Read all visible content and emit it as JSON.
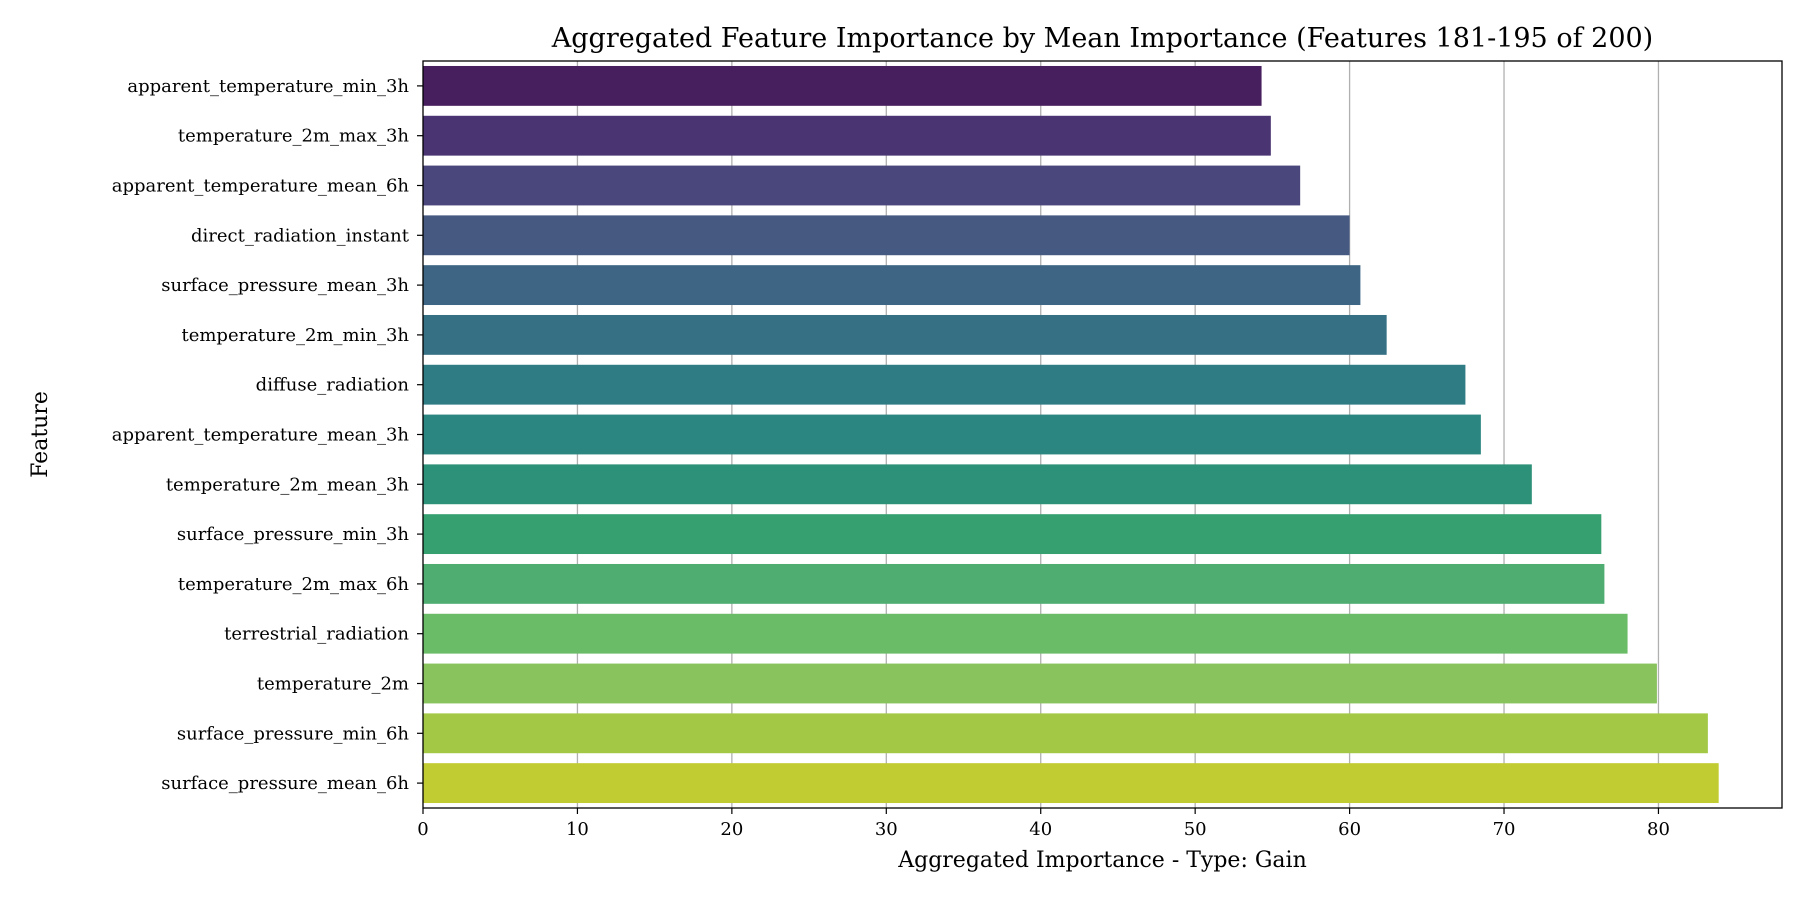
{
  "chart_data": {
    "type": "bar",
    "orientation": "horizontal",
    "title": "Aggregated Feature Importance by Mean Importance (Features 181-195 of 200)",
    "xlabel": "Aggregated Importance - Type: Gain",
    "ylabel": "Feature",
    "xlim": [
      0,
      88
    ],
    "xticks": [
      0,
      10,
      20,
      30,
      40,
      50,
      60,
      70,
      80
    ],
    "grid": "vertical",
    "legend": "none",
    "categories": [
      "apparent_temperature_min_3h",
      "temperature_2m_max_3h",
      "apparent_temperature_mean_6h",
      "direct_radiation_instant",
      "surface_pressure_mean_3h",
      "temperature_2m_min_3h",
      "diffuse_radiation",
      "apparent_temperature_mean_3h",
      "temperature_2m_mean_3h",
      "surface_pressure_min_3h",
      "temperature_2m_max_6h",
      "terrestrial_radiation",
      "temperature_2m",
      "surface_pressure_min_6h",
      "surface_pressure_mean_6h"
    ],
    "values": [
      54.3,
      54.9,
      56.8,
      60.0,
      60.7,
      62.4,
      67.5,
      68.5,
      71.8,
      76.3,
      76.5,
      78.0,
      79.9,
      83.2,
      83.9
    ],
    "colors": [
      "#471f5e",
      "#4a3471",
      "#4a477d",
      "#455981",
      "#3e6684",
      "#367085",
      "#2f7c85",
      "#2b8581",
      "#2d9079",
      "#37a071",
      "#4fad72",
      "#6bbc66",
      "#88c35d",
      "#a2c845",
      "#c1cb32"
    ]
  }
}
